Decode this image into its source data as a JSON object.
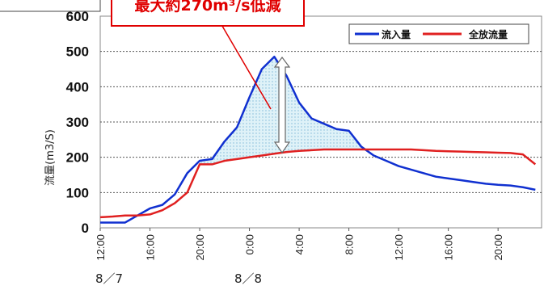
{
  "chart_data": {
    "type": "line",
    "ylabel": "流量(m3/S)",
    "ylim": [
      0,
      600
    ],
    "yticks": [
      0,
      100,
      200,
      300,
      400,
      500,
      600
    ],
    "x_tick_labels": [
      "12:00",
      "16:00",
      "20:00",
      "0:00",
      "4:00",
      "8:00",
      "12:00",
      "16:00",
      "20:00"
    ],
    "date_labels": [
      "8／7",
      "8／8"
    ],
    "grid": true,
    "legend_position": "top-right",
    "x_hours": [
      0,
      1,
      2,
      3,
      4,
      5,
      6,
      7,
      8,
      9,
      10,
      11,
      12,
      13,
      14,
      15,
      16,
      17,
      18,
      19,
      20,
      21,
      22,
      23,
      24,
      25,
      26,
      27,
      28,
      29,
      30,
      31,
      32,
      33,
      34,
      35
    ],
    "series": [
      {
        "name": "流入量",
        "color": "#1030d0",
        "values": [
          15,
          15,
          15,
          35,
          55,
          65,
          95,
          155,
          190,
          195,
          245,
          285,
          370,
          450,
          485,
          430,
          355,
          310,
          295,
          280,
          275,
          230,
          205,
          190,
          175,
          165,
          155,
          145,
          140,
          135,
          130,
          125,
          122,
          120,
          115,
          108
        ]
      },
      {
        "name": "全放流量",
        "color": "#e02020",
        "values": [
          30,
          32,
          35,
          35,
          38,
          50,
          70,
          100,
          180,
          180,
          190,
          195,
          200,
          205,
          210,
          215,
          218,
          220,
          222,
          222,
          222,
          222,
          222,
          222,
          222,
          222,
          220,
          218,
          217,
          216,
          215,
          214,
          213,
          212,
          208,
          180
        ]
      }
    ],
    "annotation": {
      "text": "最大約270m³/s低減",
      "color": "#e00000"
    }
  }
}
